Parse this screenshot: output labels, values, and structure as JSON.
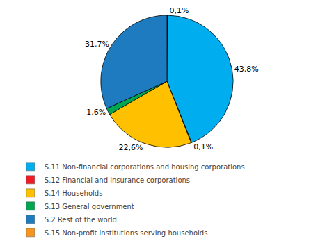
{
  "chart_data": {
    "type": "pie",
    "values": [
      0.1,
      43.8,
      0.1,
      22.6,
      1.6,
      31.7
    ],
    "value_labels": [
      "0,1%",
      "43,8%",
      "0,1%",
      "22,6%",
      "1,6%",
      "31,7%"
    ],
    "colors": [
      "#EE1C25",
      "#00AEEF",
      "#F7941D",
      "#FFC000",
      "#00A651",
      "#1F7BBF"
    ],
    "data_labels": true,
    "series": [
      {
        "name": "S.11 Non-financial corporations and housing corporations",
        "color": "#00AEEF"
      },
      {
        "name": "S.12 Financial and insurance corporations",
        "color": "#EE1C25"
      },
      {
        "name": "S.14 Households",
        "color": "#FFC000"
      },
      {
        "name": "S.13 General government",
        "color": "#00A651"
      },
      {
        "name": "S.2 Rest of the world",
        "color": "#1F7BBF"
      },
      {
        "name": "S.15 Non-profit institutions serving households",
        "color": "#F7941D"
      }
    ],
    "legend": "lower left"
  }
}
